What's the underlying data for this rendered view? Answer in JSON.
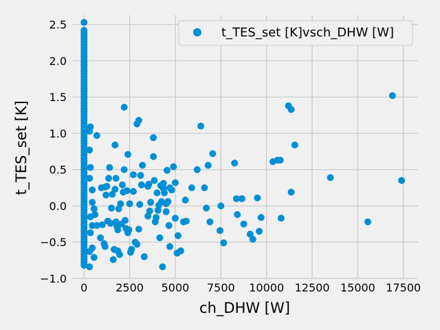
{
  "chart_data": {
    "type": "scatter",
    "xlabel": "ch_DHW [W]",
    "ylabel": "t_TES_set [K]",
    "xlim": [
      -650,
      18300
    ],
    "ylim": [
      -1.0,
      2.63
    ],
    "xticks": [
      0,
      2500,
      5000,
      7500,
      10000,
      12500,
      15000,
      17500
    ],
    "xtick_labels": [
      "0",
      "2500",
      "5000",
      "7500",
      "10000",
      "12500",
      "15000",
      "17500"
    ],
    "yticks": [
      -1.0,
      -0.5,
      0.0,
      0.5,
      1.0,
      1.5,
      2.0,
      2.5
    ],
    "ytick_labels": [
      "−1.0",
      "−0.5",
      "0.0",
      "0.5",
      "1.0",
      "1.5",
      "2.0",
      "2.5"
    ],
    "grid": true,
    "legend": {
      "position": "top-right"
    },
    "colors": {
      "marker": "#008fd5",
      "grid": "#cbcbcb",
      "background": "#f0f0f0"
    },
    "series": [
      {
        "name": "t_TES_set [K]vsch_DHW [W]",
        "points": [
          [
            0,
            2.53
          ],
          [
            0,
            2.42
          ],
          [
            0,
            2.38
          ],
          [
            0,
            2.34
          ],
          [
            0,
            2.3
          ],
          [
            0,
            2.26
          ],
          [
            0,
            2.22
          ],
          [
            0,
            2.18
          ],
          [
            0,
            2.14
          ],
          [
            0,
            2.1
          ],
          [
            0,
            2.06
          ],
          [
            0,
            2.02
          ],
          [
            0,
            1.98
          ],
          [
            0,
            1.94
          ],
          [
            0,
            1.9
          ],
          [
            0,
            1.86
          ],
          [
            0,
            1.82
          ],
          [
            0,
            1.78
          ],
          [
            0,
            1.74
          ],
          [
            0,
            1.7
          ],
          [
            0,
            1.66
          ],
          [
            0,
            1.62
          ],
          [
            0,
            1.58
          ],
          [
            0,
            1.54
          ],
          [
            0,
            1.5
          ],
          [
            0,
            1.46
          ],
          [
            0,
            1.42
          ],
          [
            0,
            1.38
          ],
          [
            0,
            1.34
          ],
          [
            0,
            1.3
          ],
          [
            0,
            1.26
          ],
          [
            0,
            1.22
          ],
          [
            0,
            1.18
          ],
          [
            0,
            1.14
          ],
          [
            0,
            1.1
          ],
          [
            0,
            1.06
          ],
          [
            0,
            1.02
          ],
          [
            0,
            0.98
          ],
          [
            0,
            0.94
          ],
          [
            0,
            0.9
          ],
          [
            0,
            0.86
          ],
          [
            0,
            0.82
          ],
          [
            0,
            0.78
          ],
          [
            0,
            0.74
          ],
          [
            0,
            0.7
          ],
          [
            0,
            0.66
          ],
          [
            0,
            0.62
          ],
          [
            0,
            0.58
          ],
          [
            0,
            0.54
          ],
          [
            0,
            0.5
          ],
          [
            0,
            0.46
          ],
          [
            0,
            0.42
          ],
          [
            0,
            0.38
          ],
          [
            0,
            0.34
          ],
          [
            0,
            0.3
          ],
          [
            0,
            0.26
          ],
          [
            0,
            0.22
          ],
          [
            0,
            0.18
          ],
          [
            0,
            0.14
          ],
          [
            0,
            0.1
          ],
          [
            0,
            0.06
          ],
          [
            0,
            0.02
          ],
          [
            0,
            -0.02
          ],
          [
            0,
            -0.06
          ],
          [
            0,
            -0.1
          ],
          [
            0,
            -0.14
          ],
          [
            0,
            -0.18
          ],
          [
            0,
            -0.22
          ],
          [
            0,
            -0.26
          ],
          [
            0,
            -0.3
          ],
          [
            0,
            -0.34
          ],
          [
            0,
            -0.38
          ],
          [
            0,
            -0.42
          ],
          [
            0,
            -0.46
          ],
          [
            0,
            -0.5
          ],
          [
            0,
            -0.54
          ],
          [
            0,
            -0.58
          ],
          [
            0,
            -0.62
          ],
          [
            0,
            -0.66
          ],
          [
            0,
            -0.7
          ],
          [
            0,
            -0.74
          ],
          [
            0,
            -0.78
          ],
          [
            0,
            -0.82
          ],
          [
            350,
            1.09
          ],
          [
            300,
            1.03
          ],
          [
            700,
            0.97
          ],
          [
            300,
            0.77
          ],
          [
            350,
            0.53
          ],
          [
            300,
            0.38
          ],
          [
            450,
            0.22
          ],
          [
            450,
            0.05
          ],
          [
            350,
            -0.15
          ],
          [
            450,
            -0.27
          ],
          [
            350,
            -0.37
          ],
          [
            450,
            -0.58
          ],
          [
            300,
            -0.63
          ],
          [
            550,
            -0.71
          ],
          [
            300,
            -0.84
          ],
          [
            550,
            -0.04
          ],
          [
            600,
            -0.12
          ],
          [
            700,
            -0.27
          ],
          [
            900,
            -0.44
          ],
          [
            950,
            0.25
          ],
          [
            1000,
            -0.26
          ],
          [
            1100,
            -0.52
          ],
          [
            1150,
            -0.56
          ],
          [
            1200,
            0.15
          ],
          [
            1150,
            0.26
          ],
          [
            1250,
            0.27
          ],
          [
            1400,
            0.53
          ],
          [
            1350,
            0.38
          ],
          [
            1300,
            -0.21
          ],
          [
            1450,
            -0.24
          ],
          [
            1500,
            -0.03
          ],
          [
            1550,
            0.16
          ],
          [
            1600,
            -0.74
          ],
          [
            1650,
            -0.6
          ],
          [
            1700,
            0.84
          ],
          [
            1700,
            0.23
          ],
          [
            1750,
            0.38
          ],
          [
            1750,
            -0.22
          ],
          [
            1800,
            -0.28
          ],
          [
            1850,
            -0.33
          ],
          [
            1850,
            -0.62
          ],
          [
            1900,
            -0.04
          ],
          [
            1950,
            -0.67
          ],
          [
            2000,
            0.03
          ],
          [
            2050,
            -0.25
          ],
          [
            2100,
            0.29
          ],
          [
            2150,
            0.19
          ],
          [
            2200,
            1.36
          ],
          [
            2200,
            0.5
          ],
          [
            2250,
            -0.2
          ],
          [
            2300,
            -0.31
          ],
          [
            2350,
            0.21
          ],
          [
            2400,
            0.71
          ],
          [
            2400,
            -0.37
          ],
          [
            2450,
            -0.33
          ],
          [
            2500,
            0.03
          ],
          [
            2550,
            -0.64
          ],
          [
            2600,
            -0.6
          ],
          [
            2700,
            0.43
          ],
          [
            2700,
            0.2
          ],
          [
            2800,
            -0.5
          ],
          [
            2900,
            1.13
          ],
          [
            2900,
            -0.53
          ],
          [
            3000,
            1.18
          ],
          [
            3000,
            -0.32
          ],
          [
            3050,
            0.02
          ],
          [
            3100,
            0.42
          ],
          [
            3200,
            0.56
          ],
          [
            3150,
            0.29
          ],
          [
            3300,
            -0.7
          ],
          [
            3500,
            -0.14
          ],
          [
            3500,
            0.27
          ],
          [
            3550,
            0.3
          ],
          [
            3600,
            -0.07
          ],
          [
            3650,
            0.05
          ],
          [
            3800,
            0.94
          ],
          [
            3800,
            0.68
          ],
          [
            3850,
            0.35
          ],
          [
            3900,
            -0.22
          ],
          [
            3950,
            -0.16
          ],
          [
            4000,
            0.18
          ],
          [
            4050,
            -0.06
          ],
          [
            4100,
            0.01
          ],
          [
            4150,
            -0.44
          ],
          [
            4200,
            0.28
          ],
          [
            4250,
            0.06
          ],
          [
            4300,
            -0.84
          ],
          [
            4350,
            0.24
          ],
          [
            4350,
            0.31
          ],
          [
            4400,
            0.18
          ],
          [
            4500,
            0.03
          ],
          [
            4500,
            -0.08
          ],
          [
            4550,
            0.49
          ],
          [
            4600,
            0.06
          ],
          [
            4650,
            -0.27
          ],
          [
            4700,
            0.25
          ],
          [
            4700,
            -0.56
          ],
          [
            4800,
            0.22
          ],
          [
            4900,
            0.54
          ],
          [
            5000,
            0.32
          ],
          [
            5000,
            -0.17
          ],
          [
            5100,
            -0.65
          ],
          [
            5150,
            -0.41
          ],
          [
            5300,
            -0.62
          ],
          [
            5450,
            -0.22
          ],
          [
            5550,
            0.08
          ],
          [
            5600,
            -0.21
          ],
          [
            5900,
            0.25
          ],
          [
            6200,
            0.5
          ],
          [
            6400,
            1.1
          ],
          [
            6600,
            0.25
          ],
          [
            6700,
            -0.03
          ],
          [
            6800,
            0.56
          ],
          [
            6900,
            -0.22
          ],
          [
            7050,
            0.72
          ],
          [
            7450,
            -0.34
          ],
          [
            7500,
            0.0
          ],
          [
            7650,
            -0.51
          ],
          [
            8250,
            0.59
          ],
          [
            8350,
            0.1
          ],
          [
            8400,
            -0.12
          ],
          [
            8650,
            0.1
          ],
          [
            8750,
            -0.25
          ],
          [
            9100,
            -0.39
          ],
          [
            9250,
            -0.46
          ],
          [
            9500,
            0.11
          ],
          [
            9600,
            -0.35
          ],
          [
            9700,
            -0.16
          ],
          [
            10350,
            0.61
          ],
          [
            10600,
            0.63
          ],
          [
            10750,
            0.63
          ],
          [
            10800,
            -0.17
          ],
          [
            11200,
            1.38
          ],
          [
            11350,
            1.33
          ],
          [
            11350,
            0.19
          ],
          [
            11550,
            0.84
          ],
          [
            13500,
            0.39
          ],
          [
            15550,
            -0.22
          ],
          [
            16900,
            1.52
          ],
          [
            17400,
            0.35
          ]
        ]
      }
    ]
  }
}
